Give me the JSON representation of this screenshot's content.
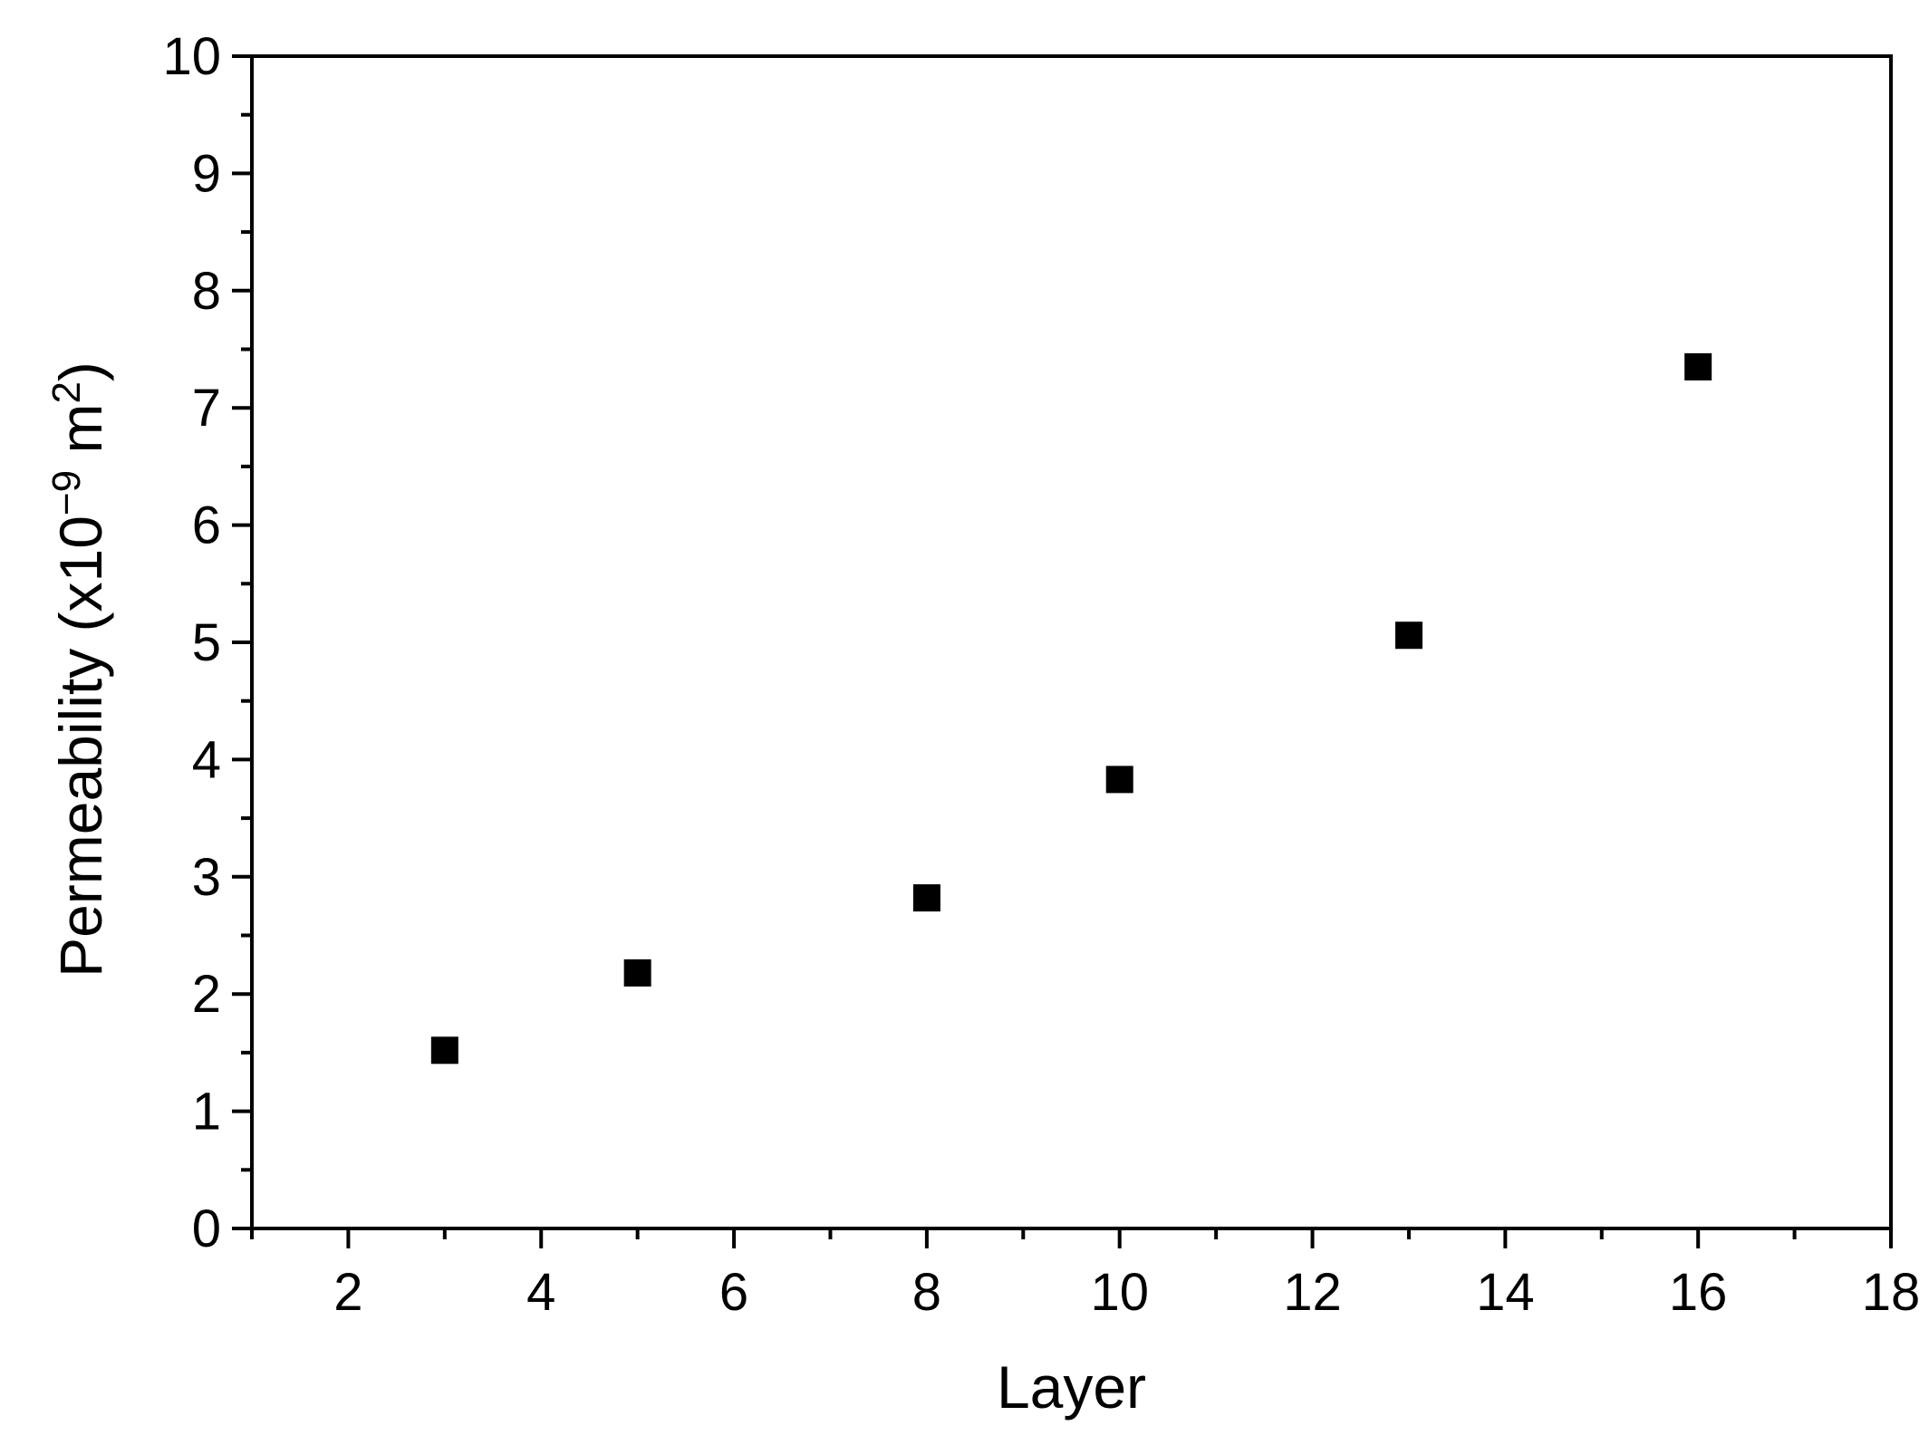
{
  "colors": {
    "axis": "#000000",
    "marker": "#000000",
    "background": "#ffffff"
  },
  "chart_data": {
    "type": "scatter",
    "title": "",
    "xlabel": "Layer",
    "ylabel": {
      "prefix": "Permeability (x10",
      "exponent_sign": "−",
      "exponent": "9",
      "unit_base": " m",
      "unit_exponent": "2",
      "suffix": ")"
    },
    "xlim": [
      1,
      18
    ],
    "ylim": [
      0,
      10
    ],
    "xticks": [
      2,
      4,
      6,
      8,
      10,
      12,
      14,
      16,
      18
    ],
    "yticks": [
      0,
      1,
      2,
      3,
      4,
      5,
      6,
      7,
      8,
      9,
      10
    ],
    "grid": false,
    "legend": false,
    "marker": "square",
    "series": [
      {
        "x": [
          3,
          5,
          8,
          10,
          13,
          16
        ],
        "y": [
          1.52,
          2.18,
          2.82,
          3.83,
          5.06,
          7.35
        ]
      }
    ]
  }
}
